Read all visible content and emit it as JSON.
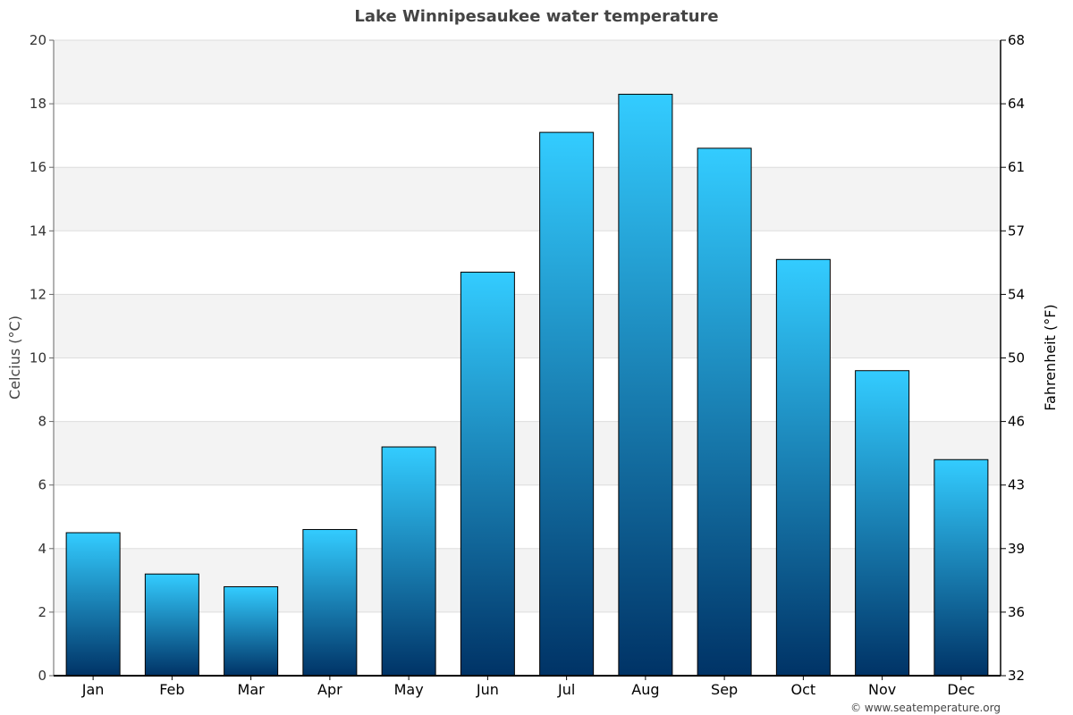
{
  "chart_data": {
    "type": "bar",
    "title": "Lake Winnipesaukee water temperature",
    "categories": [
      "Jan",
      "Feb",
      "Mar",
      "Apr",
      "May",
      "Jun",
      "Jul",
      "Aug",
      "Sep",
      "Oct",
      "Nov",
      "Dec"
    ],
    "values": [
      4.5,
      3.2,
      2.8,
      4.6,
      7.2,
      12.7,
      17.1,
      18.3,
      16.6,
      13.1,
      9.6,
      6.8
    ],
    "ylabel": "Celcius (°C)",
    "y2label": "Fahrenheit (°F)",
    "ylim": [
      0,
      20
    ],
    "yticks": [
      "0",
      "2",
      "4",
      "6",
      "8",
      "10",
      "12",
      "14",
      "16",
      "18",
      "20"
    ],
    "y2ticks": [
      "32",
      "36",
      "39",
      "43",
      "46",
      "50",
      "54",
      "57",
      "61",
      "64",
      "68"
    ],
    "grid": true,
    "colors": {
      "bar_top": "#33ccff",
      "bar_bottom": "#003366",
      "band": "#f3f3f3",
      "grid": "#dddddd"
    }
  },
  "credit": "© www.seatemperature.org"
}
